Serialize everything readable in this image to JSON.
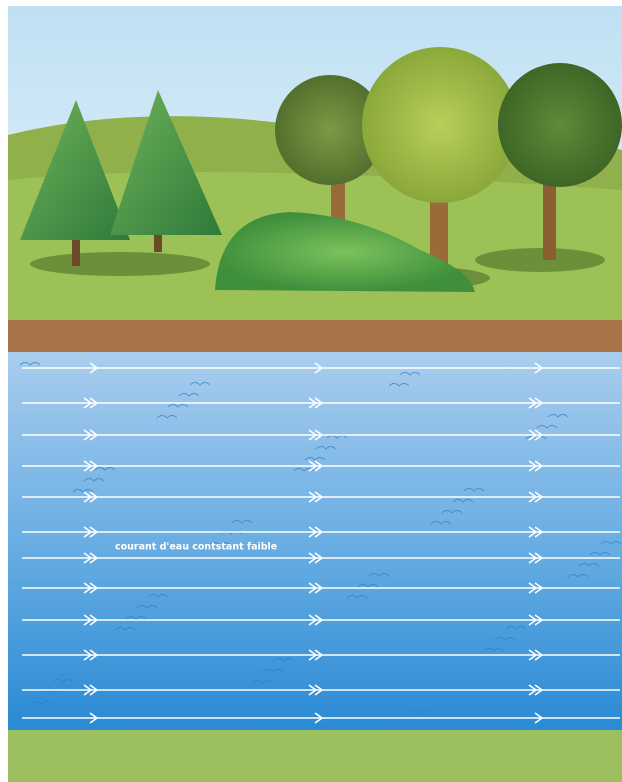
{
  "label": "courant d'eau contstant faible"
}
